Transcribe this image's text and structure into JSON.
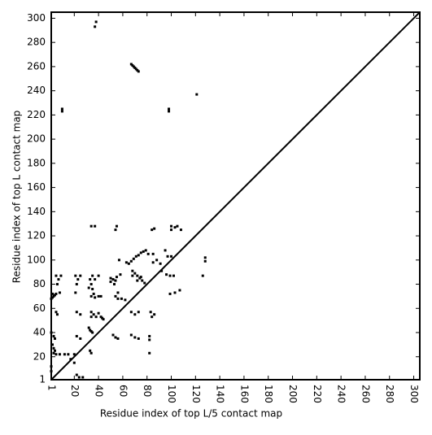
{
  "chart_data": {
    "type": "scatter",
    "x_label": "Residue index of top L/5 contact map",
    "y_label": "Residue index of top L contact map",
    "xlim": [
      1,
      305
    ],
    "ylim": [
      1,
      305
    ],
    "xticks": [
      1,
      20,
      40,
      60,
      80,
      100,
      120,
      140,
      160,
      180,
      200,
      220,
      240,
      260,
      280,
      300
    ],
    "yticks": [
      1,
      20,
      40,
      60,
      80,
      100,
      120,
      140,
      160,
      180,
      200,
      220,
      240,
      260,
      280,
      300
    ],
    "diagonal": true,
    "color": "#000000",
    "x": [
      67,
      68,
      69,
      70,
      71,
      72,
      73,
      37,
      38,
      10,
      10,
      98,
      98,
      121,
      34,
      37,
      55,
      54,
      100,
      103,
      105,
      108,
      86,
      84,
      100,
      128,
      128,
      126,
      79,
      77,
      75,
      73,
      71,
      69,
      67,
      65,
      63,
      57,
      81,
      85,
      95,
      97,
      100,
      88,
      85,
      91,
      92,
      96,
      99,
      102,
      99,
      103,
      107,
      68,
      70,
      72,
      74,
      76,
      78,
      68,
      72,
      75,
      5,
      7,
      9,
      6,
      8,
      4,
      3,
      2,
      1,
      2,
      5,
      21,
      23,
      25,
      22,
      21,
      35,
      33,
      37,
      40,
      34,
      32,
      35,
      36,
      34,
      37,
      40,
      42,
      50,
      52,
      54,
      50,
      53,
      55,
      58,
      56,
      54,
      56,
      59,
      62,
      34,
      36,
      40,
      34,
      38,
      42,
      43,
      44,
      5,
      6,
      22,
      25,
      22,
      25,
      32,
      33,
      34,
      35,
      33,
      34,
      52,
      54,
      56,
      67,
      70,
      73,
      67,
      70,
      73,
      83,
      86,
      84,
      82,
      82,
      82,
      1,
      3,
      4,
      2,
      3,
      4,
      3,
      5,
      8,
      12,
      15,
      20,
      1,
      1,
      22,
      24,
      27,
      20,
      17
    ],
    "values": [
      262,
      261,
      260,
      259,
      258,
      257,
      256,
      293,
      297,
      225,
      223,
      225,
      223,
      237,
      128,
      128,
      128,
      125,
      128,
      127,
      128,
      125,
      126,
      125,
      125,
      102,
      99,
      87,
      108,
      107,
      106,
      104,
      103,
      101,
      99,
      97,
      98,
      100,
      105,
      105,
      108,
      103,
      103,
      100,
      98,
      97,
      91,
      88,
      87,
      87,
      72,
      73,
      75,
      91,
      89,
      87,
      85,
      83,
      81,
      87,
      83,
      86,
      87,
      84,
      87,
      80,
      73,
      71,
      70,
      69,
      68,
      72,
      72,
      87,
      84,
      87,
      80,
      73,
      87,
      84,
      84,
      87,
      80,
      77,
      76,
      72,
      70,
      69,
      70,
      70,
      85,
      84,
      83,
      82,
      80,
      86,
      88,
      73,
      70,
      68,
      68,
      67,
      57,
      55,
      56,
      53,
      53,
      53,
      52,
      51,
      57,
      55,
      57,
      55,
      37,
      35,
      44,
      42,
      41,
      40,
      25,
      23,
      38,
      36,
      35,
      38,
      36,
      35,
      57,
      55,
      57,
      57,
      55,
      53,
      37,
      34,
      23,
      40,
      37,
      35,
      30,
      27,
      25,
      23,
      22,
      22,
      22,
      22,
      22,
      12,
      8,
      5,
      3,
      3,
      15,
      18
    ]
  }
}
